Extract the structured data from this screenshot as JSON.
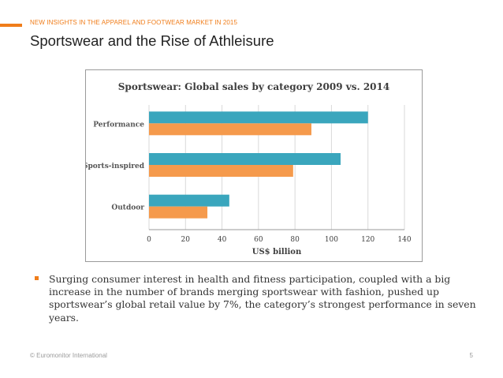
{
  "slide": {
    "eyebrow": "NEW INSIGHTS IN THE APPAREL AND FOOTWEAR MARKET IN 2015",
    "title": "Sportswear and the Rise of Athleisure",
    "bullet": "Surging consumer interest in health and fitness participation, coupled with a big increase in the number of brands merging sportswear with fashion, pushed up sportswear’s global retail value by 7%, the category’s strongest performance in seven years.",
    "footer_left": "© Euromonitor International",
    "page_number": "5"
  },
  "colors": {
    "accent": "#f07d1a",
    "series_2014": "#3aa6bd",
    "series_2009": "#f59a4c"
  },
  "chart_data": {
    "type": "bar",
    "orientation": "horizontal",
    "title": "Sportswear: Global sales by category 2009 vs. 2014",
    "categories": [
      "Performance",
      "Sports-inspired",
      "Outdoor"
    ],
    "series": [
      {
        "name": "2014",
        "values": [
          120,
          105,
          44
        ]
      },
      {
        "name": "2009",
        "values": [
          89,
          79,
          32
        ]
      }
    ],
    "xlabel": "US$ billion",
    "ylabel": "",
    "xlim": [
      0,
      140
    ],
    "xticks": [
      0,
      20,
      40,
      60,
      80,
      100,
      120,
      140
    ],
    "grid": true,
    "legend": "none"
  }
}
